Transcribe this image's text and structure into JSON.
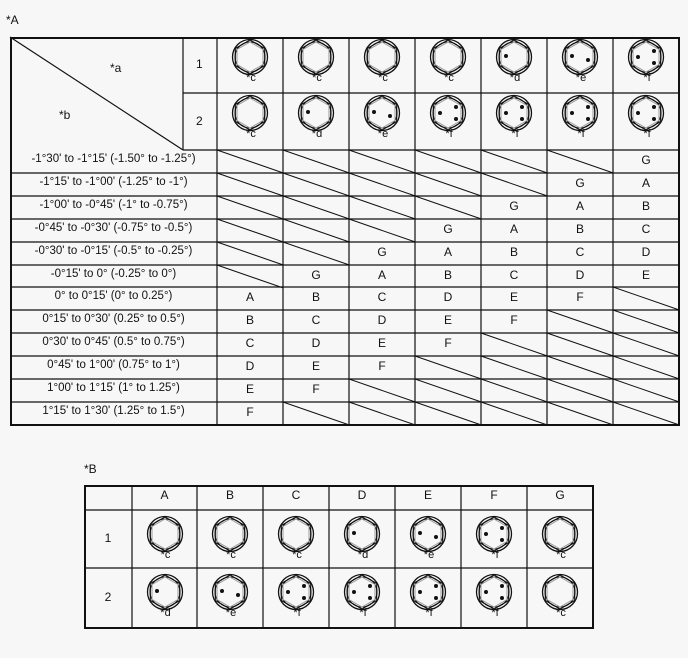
{
  "table_a": {
    "title": "*A",
    "corner_top": "*a",
    "corner_bottom": "*b",
    "header_rows": [
      {
        "label": "1",
        "icons": [
          "*c",
          "*c",
          "*c",
          "*c",
          "*d",
          "*e",
          "*f"
        ]
      },
      {
        "label": "2",
        "icons": [
          "*c",
          "*d",
          "*e",
          "*f",
          "*f",
          "*f",
          "*f"
        ]
      }
    ],
    "rows": [
      {
        "label": "-1°30' to -1°15' (-1.50° to -1.25°)",
        "cells": [
          null,
          null,
          null,
          null,
          null,
          null,
          "G"
        ]
      },
      {
        "label": "-1°15' to -1°00' (-1.25° to -1°)",
        "cells": [
          null,
          null,
          null,
          null,
          null,
          "G",
          "A"
        ]
      },
      {
        "label": "-1°00' to -0°45' (-1° to -0.75°)",
        "cells": [
          null,
          null,
          null,
          null,
          "G",
          "A",
          "B"
        ]
      },
      {
        "label": "-0°45' to -0°30' (-0.75° to -0.5°)",
        "cells": [
          null,
          null,
          null,
          "G",
          "A",
          "B",
          "C"
        ]
      },
      {
        "label": "-0°30' to -0°15' (-0.5° to -0.25°)",
        "cells": [
          null,
          null,
          "G",
          "A",
          "B",
          "C",
          "D"
        ]
      },
      {
        "label": "-0°15' to 0° (-0.25° to 0°)",
        "cells": [
          null,
          "G",
          "A",
          "B",
          "C",
          "D",
          "E"
        ]
      },
      {
        "label": "0° to 0°15' (0° to 0.25°)",
        "cells": [
          "A",
          "B",
          "C",
          "D",
          "E",
          "F",
          null
        ]
      },
      {
        "label": "0°15' to 0°30' (0.25° to 0.5°)",
        "cells": [
          "B",
          "C",
          "D",
          "E",
          "F",
          null,
          null
        ]
      },
      {
        "label": "0°30' to 0°45' (0.5° to 0.75°)",
        "cells": [
          "C",
          "D",
          "E",
          "F",
          null,
          null,
          null
        ]
      },
      {
        "label": "0°45' to 1°00' (0.75° to 1°)",
        "cells": [
          "D",
          "E",
          "F",
          null,
          null,
          null,
          null
        ]
      },
      {
        "label": "1°00' to 1°15' (1° to 1.25°)",
        "cells": [
          "E",
          "F",
          null,
          null,
          null,
          null,
          null
        ]
      },
      {
        "label": "1°15' to 1°30' (1.25° to 1.5°)",
        "cells": [
          "F",
          null,
          null,
          null,
          null,
          null,
          null
        ]
      }
    ]
  },
  "table_b": {
    "title": "*B",
    "columns": [
      "A",
      "B",
      "C",
      "D",
      "E",
      "F",
      "G"
    ],
    "rows": [
      {
        "label": "1",
        "icons": [
          "*c",
          "*c",
          "*c",
          "*d",
          "*e",
          "*f",
          "*c"
        ]
      },
      {
        "label": "2",
        "icons": [
          "*d",
          "*e",
          "*f",
          "*f",
          "*f",
          "*f",
          "*c"
        ]
      }
    ]
  },
  "icon_legend": {
    "*c": "hex-bolt-no-dots",
    "*d": "hex-bolt-one-dot",
    "*e": "hex-bolt-two-dots",
    "*f": "hex-bolt-three-dots"
  }
}
